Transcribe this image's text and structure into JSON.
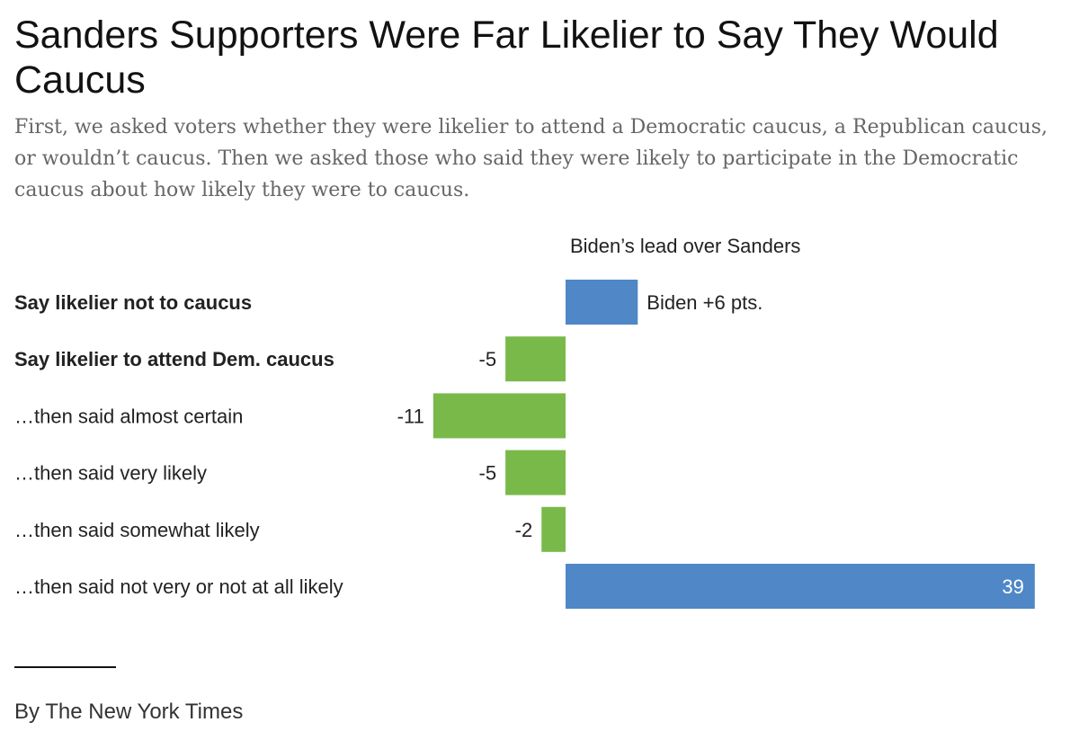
{
  "header": {
    "title": "Sanders Supporters Were Far Likelier to Say They Would Caucus",
    "subtitle": "First, we asked voters whether they were likelier to attend a Democratic caucus, a Republican caucus, or wouldn’t caucus. Then we asked those who said they were likely to participate in the Democratic caucus about how likely they were to caucus."
  },
  "footer": {
    "credit": "By The New York Times"
  },
  "colors": {
    "biden": "#4f87c7",
    "sanders": "#79b94a"
  },
  "chart_data": {
    "type": "bar",
    "orientation": "horizontal",
    "column_header": "Biden’s lead over Sanders",
    "xlim": [
      -11,
      39
    ],
    "rows": [
      {
        "label": "Say likelier not to caucus",
        "value": 6,
        "bold": true,
        "value_label": "Biden +6 pts.",
        "label_position": "outside"
      },
      {
        "label": "Say likelier to attend Dem. caucus",
        "value": -5,
        "bold": true,
        "value_label": "-5",
        "label_position": "outside"
      },
      {
        "label": "…then said almost certain",
        "value": -11,
        "bold": false,
        "value_label": "-11",
        "label_position": "outside"
      },
      {
        "label": "…then said very likely",
        "value": -5,
        "bold": false,
        "value_label": "-5",
        "label_position": "outside"
      },
      {
        "label": "…then said somewhat likely",
        "value": -2,
        "bold": false,
        "value_label": "-2",
        "label_position": "outside"
      },
      {
        "label": "…then said not very or not at all likely",
        "value": 39,
        "bold": false,
        "value_label": "39",
        "label_position": "inside"
      }
    ]
  }
}
